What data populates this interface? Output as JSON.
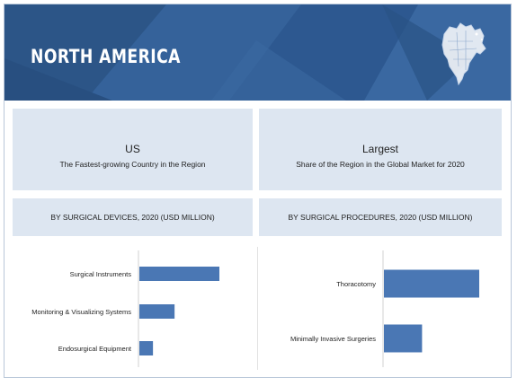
{
  "header": {
    "region": "NORTH AMERICA",
    "map_icon": "north-america-map-icon"
  },
  "highlights": [
    {
      "headline": "US",
      "detail": "The Fastest-growing Country in the Region"
    },
    {
      "headline": "Largest",
      "detail": "Share of the Region in the Global Market for 2020"
    }
  ],
  "colors": {
    "banner": "#2f5b8e",
    "card": "#dde6f1",
    "bar": "#4a77b4"
  },
  "chart_data": [
    {
      "type": "bar",
      "orientation": "horizontal",
      "title": "BY SURGICAL DEVICES, 2020 (USD MILLION)",
      "categories": [
        "Surgical Instruments",
        "Monitoring & Visualizing Systems",
        "Endosurgical Equipment"
      ],
      "values": [
        100,
        44,
        17
      ],
      "value_scale": "relative, unlabeled",
      "grid": false
    },
    {
      "type": "bar",
      "orientation": "horizontal",
      "title": "BY SURGICAL PROCEDURES, 2020 (USD MILLION)",
      "categories": [
        "Thoracotomy",
        "Minimally Invasive Surgeries"
      ],
      "values": [
        100,
        40
      ],
      "value_scale": "relative, unlabeled",
      "grid": false
    }
  ]
}
